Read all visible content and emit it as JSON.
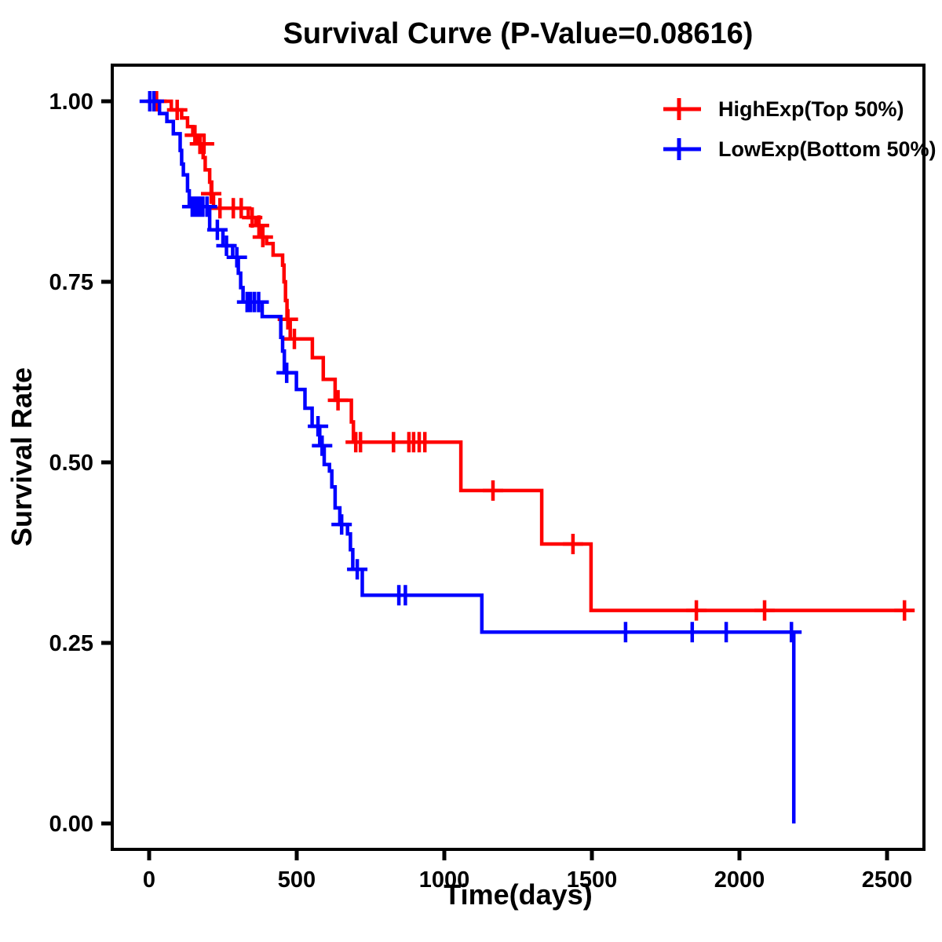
{
  "title": "Survival Curve (P-Value=0.08616)",
  "axes": {
    "x": {
      "label": "Time(days)",
      "ticks": [
        0,
        500,
        1000,
        1500,
        2000,
        2500
      ]
    },
    "y": {
      "label": "Survival Rate",
      "ticks": [
        {
          "label": "1.00",
          "value": 1.0
        },
        {
          "label": "0.75",
          "value": 0.75
        },
        {
          "label": "0.50",
          "value": 0.5
        },
        {
          "label": "0.25",
          "value": 0.25
        },
        {
          "label": "0.00",
          "value": 0.0
        }
      ]
    }
  },
  "legend": [
    {
      "key": "highexp",
      "label": "HighExp(Top 50%)",
      "color": "#FF0000",
      "marker": "plus-icon"
    },
    {
      "key": "lowexp",
      "label": "LowExp(Bottom 50%)",
      "color": "#0000FF",
      "marker": "plus-icon"
    }
  ],
  "chart_data": {
    "type": "line",
    "subtype": "kaplan_meier_survival_step",
    "title": "Survival Curve (P-Value=0.08616)",
    "p_value": 0.08616,
    "xlabel": "Time(days)",
    "ylabel": "Survival Rate",
    "xlim": [
      -125,
      2625
    ],
    "ylim": [
      -0.036,
      1.05
    ],
    "x_ticks": [
      0,
      500,
      1000,
      1500,
      2000,
      2500
    ],
    "y_ticks": [
      0,
      0.25,
      0.5,
      0.75,
      1.0
    ],
    "grid": false,
    "legend_position": "top-right",
    "series": [
      {
        "name": "HighExp(Top 50%)",
        "key": "highexp",
        "color": "#FF0000",
        "steps": [
          [
            0,
            1.0
          ],
          [
            75,
            0.988
          ],
          [
            110,
            0.977
          ],
          [
            130,
            0.965
          ],
          [
            148,
            0.953
          ],
          [
            165,
            0.941
          ],
          [
            183,
            0.922
          ],
          [
            190,
            0.905
          ],
          [
            205,
            0.888
          ],
          [
            212,
            0.872
          ],
          [
            218,
            0.852
          ],
          [
            336,
            0.839
          ],
          [
            362,
            0.828
          ],
          [
            380,
            0.812
          ],
          [
            398,
            0.803
          ],
          [
            420,
            0.787
          ],
          [
            452,
            0.773
          ],
          [
            457,
            0.75
          ],
          [
            462,
            0.724
          ],
          [
            467,
            0.698
          ],
          [
            478,
            0.671
          ],
          [
            553,
            0.645
          ],
          [
            590,
            0.615
          ],
          [
            630,
            0.586
          ],
          [
            685,
            0.556
          ],
          [
            692,
            0.528
          ],
          [
            1056,
            0.461
          ],
          [
            1330,
            0.387
          ],
          [
            1497,
            0.295
          ],
          [
            2593,
            0.295
          ]
        ],
        "censor_marks": [
          [
            25,
            1.0
          ],
          [
            95,
            0.988
          ],
          [
            155,
            0.953
          ],
          [
            172,
            0.941
          ],
          [
            186,
            0.941
          ],
          [
            210,
            0.872
          ],
          [
            240,
            0.852
          ],
          [
            285,
            0.852
          ],
          [
            312,
            0.852
          ],
          [
            349,
            0.839
          ],
          [
            372,
            0.828
          ],
          [
            385,
            0.812
          ],
          [
            470,
            0.698
          ],
          [
            492,
            0.671
          ],
          [
            640,
            0.586
          ],
          [
            700,
            0.528
          ],
          [
            716,
            0.528
          ],
          [
            828,
            0.528
          ],
          [
            880,
            0.528
          ],
          [
            896,
            0.528
          ],
          [
            915,
            0.528
          ],
          [
            934,
            0.528
          ],
          [
            1165,
            0.461
          ],
          [
            1436,
            0.387
          ],
          [
            1854,
            0.295
          ],
          [
            2085,
            0.295
          ],
          [
            2559,
            0.295
          ]
        ]
      },
      {
        "name": "LowExp(Bottom 50%)",
        "key": "lowexp",
        "color": "#0000FF",
        "steps": [
          [
            0,
            1.0
          ],
          [
            35,
            0.983
          ],
          [
            60,
            0.972
          ],
          [
            82,
            0.955
          ],
          [
            105,
            0.932
          ],
          [
            110,
            0.913
          ],
          [
            116,
            0.898
          ],
          [
            130,
            0.876
          ],
          [
            136,
            0.854
          ],
          [
            205,
            0.822
          ],
          [
            250,
            0.8
          ],
          [
            283,
            0.784
          ],
          [
            302,
            0.762
          ],
          [
            310,
            0.742
          ],
          [
            318,
            0.722
          ],
          [
            383,
            0.702
          ],
          [
            446,
            0.673
          ],
          [
            452,
            0.654
          ],
          [
            458,
            0.624
          ],
          [
            499,
            0.601
          ],
          [
            528,
            0.575
          ],
          [
            552,
            0.55
          ],
          [
            578,
            0.523
          ],
          [
            593,
            0.497
          ],
          [
            611,
            0.488
          ],
          [
            619,
            0.466
          ],
          [
            630,
            0.437
          ],
          [
            646,
            0.414
          ],
          [
            672,
            0.401
          ],
          [
            682,
            0.379
          ],
          [
            690,
            0.352
          ],
          [
            722,
            0.316
          ],
          [
            1127,
            0.265
          ],
          [
            2184,
            0.265
          ],
          [
            2184,
            0.0
          ]
        ],
        "censor_marks": [
          [
            2,
            1.0
          ],
          [
            16,
            1.0
          ],
          [
            146,
            0.854
          ],
          [
            158,
            0.854
          ],
          [
            170,
            0.854
          ],
          [
            182,
            0.854
          ],
          [
            196,
            0.854
          ],
          [
            231,
            0.822
          ],
          [
            262,
            0.8
          ],
          [
            297,
            0.784
          ],
          [
            332,
            0.722
          ],
          [
            344,
            0.722
          ],
          [
            357,
            0.722
          ],
          [
            371,
            0.722
          ],
          [
            466,
            0.624
          ],
          [
            572,
            0.55
          ],
          [
            586,
            0.523
          ],
          [
            652,
            0.414
          ],
          [
            705,
            0.352
          ],
          [
            846,
            0.316
          ],
          [
            868,
            0.316
          ],
          [
            1614,
            0.265
          ],
          [
            1840,
            0.265
          ],
          [
            1955,
            0.265
          ],
          [
            2176,
            0.265
          ]
        ]
      }
    ]
  }
}
